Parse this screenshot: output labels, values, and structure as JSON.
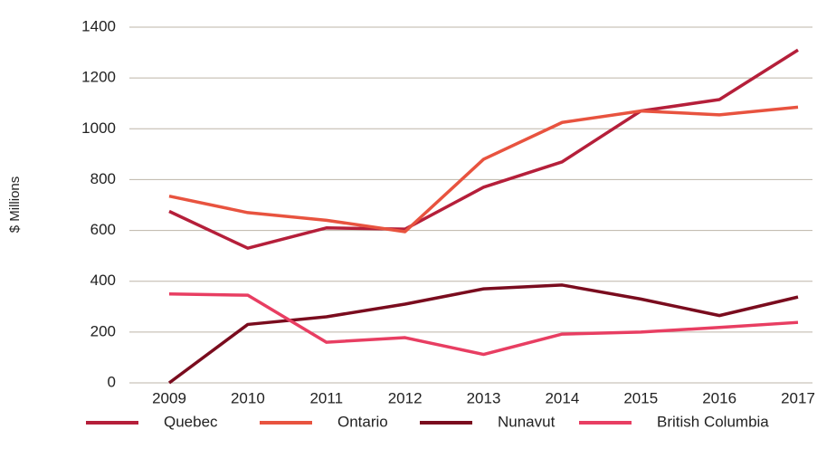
{
  "chart_data": {
    "type": "line",
    "y_label": "$ Millions",
    "categories": [
      "2009",
      "2010",
      "2011",
      "2012",
      "2013",
      "2014",
      "2015",
      "2016",
      "2017"
    ],
    "series": [
      {
        "name": "Quebec",
        "color": "#b51f3a",
        "values": [
          675,
          530,
          610,
          605,
          770,
          870,
          1070,
          1115,
          1310
        ]
      },
      {
        "name": "Ontario",
        "color": "#e8533f",
        "values": [
          735,
          670,
          640,
          595,
          880,
          1025,
          1070,
          1055,
          1085
        ]
      },
      {
        "name": "Nunavut",
        "color": "#7a0c1e",
        "values": [
          0,
          230,
          260,
          310,
          370,
          385,
          330,
          265,
          338
        ]
      },
      {
        "name": "British Columbia",
        "color": "#e83e62",
        "values": [
          350,
          345,
          160,
          178,
          112,
          192,
          200,
          218,
          238
        ]
      }
    ],
    "ylim": [
      0,
      1400
    ],
    "yticks": [
      0,
      200,
      400,
      600,
      800,
      1000,
      1200,
      1400
    ],
    "grid": true,
    "legend": "bottom"
  }
}
